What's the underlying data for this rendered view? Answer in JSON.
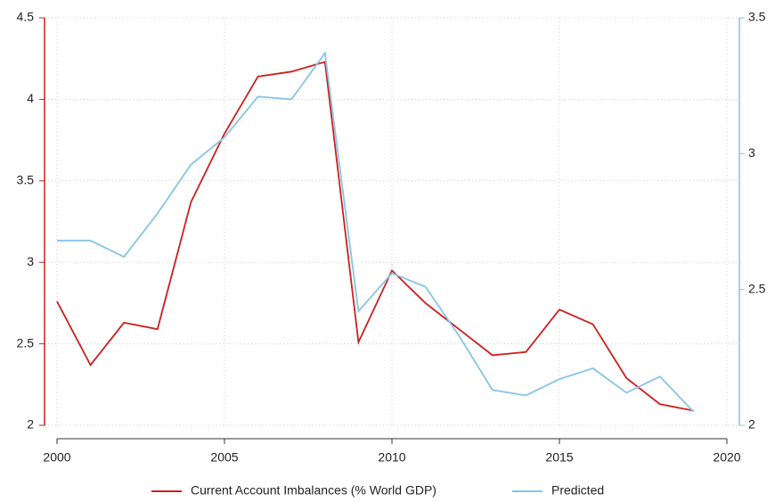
{
  "chart_data": {
    "type": "line",
    "x": [
      2000,
      2001,
      2002,
      2003,
      2004,
      2005,
      2006,
      2007,
      2008,
      2009,
      2010,
      2011,
      2012,
      2013,
      2014,
      2015,
      2016,
      2017,
      2018,
      2019
    ],
    "series": [
      {
        "name": "Current Account Imbalances (% World GDP)",
        "color": "#cc1f1f",
        "values": [
          2.76,
          2.37,
          2.63,
          2.59,
          3.37,
          3.79,
          4.14,
          4.17,
          4.23,
          2.51,
          2.95,
          2.75,
          2.59,
          2.43,
          2.45,
          2.71,
          2.62,
          2.29,
          2.13,
          2.09
        ]
      },
      {
        "name": "Predicted",
        "color": "#87c4e6",
        "axis": "y2",
        "values": [
          2.68,
          2.68,
          2.62,
          2.78,
          2.96,
          3.06,
          3.21,
          3.2,
          3.37,
          2.42,
          2.56,
          2.51,
          2.33,
          2.13,
          2.11,
          2.17,
          2.21,
          2.12,
          2.18,
          2.05
        ]
      }
    ],
    "xlim": [
      2000,
      2020
    ],
    "xticks": [
      2000,
      2005,
      2010,
      2015,
      2020
    ],
    "ylim": [
      2,
      4.5
    ],
    "yticks": [
      2,
      2.5,
      3,
      3.5,
      4,
      4.5
    ],
    "y2lim": [
      2,
      3.5
    ],
    "y2ticks": [
      2,
      2.5,
      3,
      3.5
    ],
    "grid": true,
    "legend": "bottom"
  }
}
